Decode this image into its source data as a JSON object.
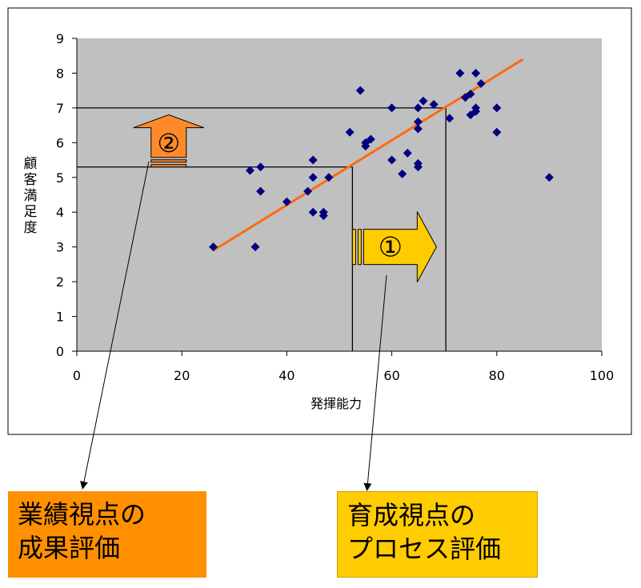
{
  "chart_data": {
    "type": "scatter",
    "title": "",
    "xlabel": "発揮能力",
    "ylabel": "顧客満足度",
    "xlim": [
      0,
      100
    ],
    "ylim": [
      0,
      9
    ],
    "x_ticks": [
      "0",
      "20",
      "40",
      "60",
      "80",
      "100"
    ],
    "y_ticks": [
      "0",
      "1",
      "2",
      "3",
      "4",
      "5",
      "6",
      "7",
      "8",
      "9"
    ],
    "grid": false,
    "plot_background": "#c0c0c0",
    "marker_color": "#000080",
    "trend_color": "#ff6a10",
    "points": [
      {
        "x": 26,
        "y": 3.0
      },
      {
        "x": 33,
        "y": 5.2
      },
      {
        "x": 34,
        "y": 3.0
      },
      {
        "x": 35,
        "y": 5.3
      },
      {
        "x": 35,
        "y": 4.6
      },
      {
        "x": 40,
        "y": 4.3
      },
      {
        "x": 44,
        "y": 4.6
      },
      {
        "x": 45,
        "y": 5.5
      },
      {
        "x": 45,
        "y": 5.0
      },
      {
        "x": 45,
        "y": 4.0
      },
      {
        "x": 47,
        "y": 4.0
      },
      {
        "x": 47,
        "y": 3.9
      },
      {
        "x": 48,
        "y": 5.0
      },
      {
        "x": 52,
        "y": 6.3
      },
      {
        "x": 54,
        "y": 7.5
      },
      {
        "x": 55,
        "y": 5.9
      },
      {
        "x": 55,
        "y": 6.0
      },
      {
        "x": 56,
        "y": 6.1
      },
      {
        "x": 60,
        "y": 7.0
      },
      {
        "x": 60,
        "y": 5.5
      },
      {
        "x": 62,
        "y": 5.1
      },
      {
        "x": 63,
        "y": 5.7
      },
      {
        "x": 65,
        "y": 7.0
      },
      {
        "x": 65,
        "y": 6.6
      },
      {
        "x": 65,
        "y": 6.4
      },
      {
        "x": 65,
        "y": 5.4
      },
      {
        "x": 65,
        "y": 5.3
      },
      {
        "x": 66,
        "y": 7.2
      },
      {
        "x": 68,
        "y": 7.1
      },
      {
        "x": 71,
        "y": 6.7
      },
      {
        "x": 73,
        "y": 8.0
      },
      {
        "x": 74,
        "y": 7.3
      },
      {
        "x": 75,
        "y": 7.4
      },
      {
        "x": 75,
        "y": 6.8
      },
      {
        "x": 76,
        "y": 8.0
      },
      {
        "x": 76,
        "y": 7.0
      },
      {
        "x": 76,
        "y": 6.9
      },
      {
        "x": 77,
        "y": 7.7
      },
      {
        "x": 80,
        "y": 7.0
      },
      {
        "x": 80,
        "y": 6.3
      },
      {
        "x": 90,
        "y": 5.0
      }
    ],
    "trendline": {
      "x": [
        26,
        85
      ],
      "y": [
        2.9,
        8.4
      ]
    },
    "reference_lines": [
      {
        "x": 52.5,
        "y": 5.3
      },
      {
        "x": 70.3,
        "y": 7.0
      }
    ],
    "annotations": {
      "arrow_right": {
        "label": "①",
        "color": "#ffcc00",
        "x": [
          52.5,
          68.5
        ],
        "y_center": 3.0
      },
      "arrow_up": {
        "label": "②",
        "color": "#ff8a2a",
        "x_center": 17.5,
        "y": [
          5.3,
          6.8
        ]
      }
    }
  },
  "labels": {
    "box_left": [
      "業績視点の",
      "成果評価"
    ],
    "box_right": [
      "育成視点の",
      "プロセス評価"
    ]
  }
}
